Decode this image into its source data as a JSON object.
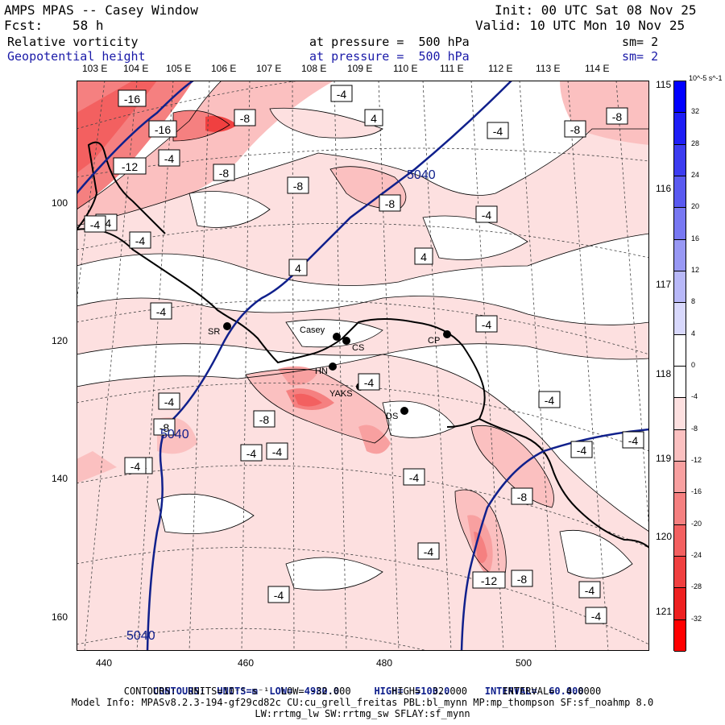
{
  "header": {
    "title": "AMPS MPAS -- Casey Window",
    "fcst_label": "Fcst:",
    "fcst_value": "58 h",
    "init": "Init: 00 UTC Sat 08 Nov 25",
    "valid": "Valid: 10 UTC Mon 10 Nov 25",
    "field1_name": "Relative vorticity",
    "field1_level": "at pressure =  500 hPa",
    "field1_sm": "sm= 2",
    "field2_name": "Geopotential height",
    "field2_level": "at pressure =  500 hPa",
    "field2_sm": "sm= 2"
  },
  "top_longitudes": [
    "103 E",
    "104 E",
    "105 E",
    "106 E",
    "107 E",
    "108 E",
    "109 E",
    "110 E",
    "111 E",
    "112 E",
    "113 E",
    "114 E"
  ],
  "right_longitudes": [
    "115 E",
    "116 E",
    "117 E",
    "118 E",
    "119 E",
    "120 E",
    "121 E"
  ],
  "x_ticks": [
    "440",
    "460",
    "480",
    "500"
  ],
  "y_ticks": [
    "100",
    "120",
    "140",
    "160"
  ],
  "stations": [
    {
      "name": "SR"
    },
    {
      "name": "Casey"
    },
    {
      "name": "CS"
    },
    {
      "name": "CP"
    },
    {
      "name": "HN"
    },
    {
      "name": "YAKS"
    },
    {
      "name": "DS"
    }
  ],
  "contour_labels": [
    "-16",
    "-16",
    "-8",
    "-8",
    "-8",
    "-8",
    "-8",
    "-8",
    "-4",
    "-4",
    "-4",
    "-4",
    "-4",
    "-4",
    "-4",
    "-4",
    "-4",
    "-4",
    "-4",
    "-4",
    "-4",
    "-4",
    "-4",
    "-4",
    "-4",
    "-4",
    "-4",
    "-4",
    "-4",
    "-4",
    "4",
    "4",
    "4",
    "-12",
    "-12",
    "-8",
    "-8",
    "-8",
    "-8",
    "-4"
  ],
  "height_labels": [
    "5040",
    "5040",
    "5040"
  ],
  "colorbar": {
    "unit": "10^-5 s^-1",
    "labels": [
      "32",
      "28",
      "24",
      "20",
      "16",
      "12",
      "8",
      "4",
      "0",
      "-4",
      "-8",
      "-12",
      "-16",
      "-20",
      "-24",
      "-28",
      "-32"
    ],
    "colors": [
      "#0000ff",
      "#1e1ef6",
      "#3c3cf0",
      "#5a5af0",
      "#7878f2",
      "#9898f4",
      "#b8b8f8",
      "#d8d8fc",
      "#ffffff",
      "#ffffff",
      "#fde0e0",
      "#fbc0c0",
      "#f8a0a0",
      "#f58080",
      "#f36060",
      "#f04040",
      "#ee2020",
      "#ff0000"
    ]
  },
  "footer": {
    "line1_label": "CONTOURS:",
    "line1_units": "UNITS=m",
    "line1_low": "LOW=  4980.0",
    "line1_high": "HIGH=  5100.0",
    "line1_interval": "INTERVAL=  60.000",
    "line2": "CONTOURS:  UNITS=10⁻⁵ s⁻¹  LOW= -32.000       HIGH=  32.000      INTERVAL=  4.0000",
    "line3": "Model Info: MPASv8.2.3-194-gf29cd82c CU:cu_grell_freitas PBL:bl_mynn MP:mp_thompson SF:sf_noahmp 8.0",
    "line4": "LW:rrtmg_lw SW:rrtmg_sw SFLAY:sf_mynn"
  },
  "colors": {
    "height_contour": "#10208c",
    "coast": "#000000",
    "shade_light": "#fde0e0",
    "shade_mid": "#fbc0c0",
    "shade_dark": "#f58080"
  }
}
